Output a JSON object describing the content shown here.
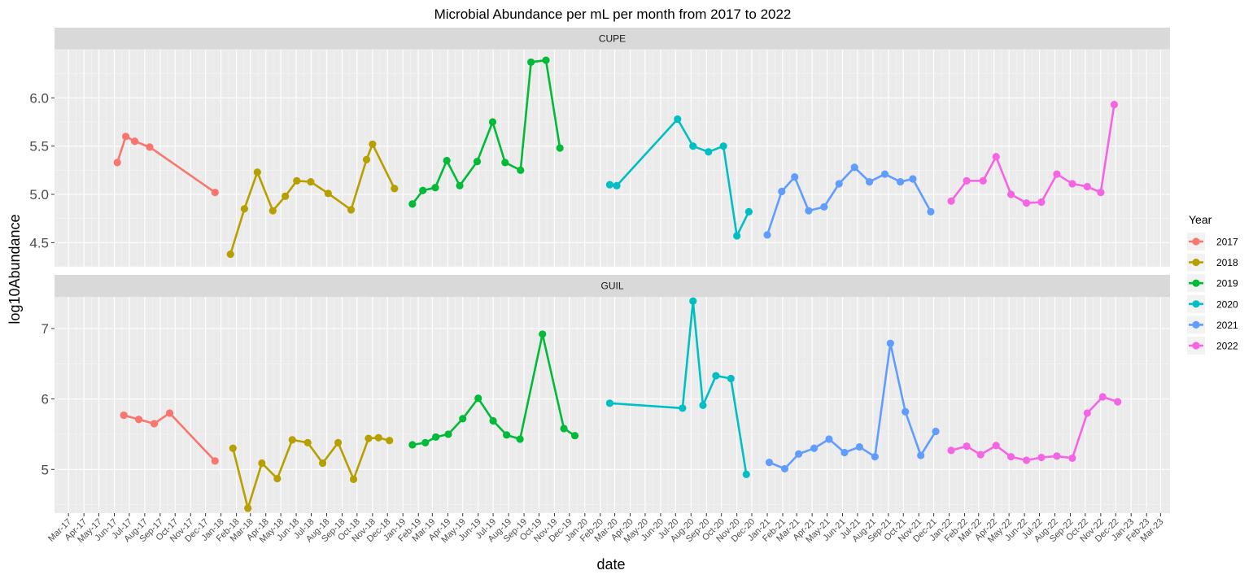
{
  "chart_data": {
    "type": "line",
    "title": "Microbial Abundance per mL per month from 2017 to 2022",
    "xlabel": "date",
    "ylabel": "log10Abundance",
    "x_tick_labels": [
      "Mar-17",
      "Apr-17",
      "May-17",
      "Jun-17",
      "Jul-17",
      "Aug-17",
      "Sep-17",
      "Oct-17",
      "Nov-17",
      "Dec-17",
      "Jan-18",
      "Feb-18",
      "Mar-18",
      "Apr-18",
      "May-18",
      "Jun-18",
      "Jul-18",
      "Aug-18",
      "Sep-18",
      "Oct-18",
      "Nov-18",
      "Dec-18",
      "Jan-19",
      "Feb-19",
      "Mar-19",
      "Apr-19",
      "May-19",
      "Jun-19",
      "Jul-19",
      "Aug-19",
      "Sep-19",
      "Oct-19",
      "Nov-19",
      "Dec-19",
      "Jan-20",
      "Feb-20",
      "Mar-20",
      "Apr-20",
      "May-20",
      "Jun-20",
      "Jul-20",
      "Aug-20",
      "Sep-20",
      "Oct-20",
      "Nov-20",
      "Dec-20",
      "Jan-21",
      "Feb-21",
      "Mar-21",
      "Apr-21",
      "May-21",
      "Jun-21",
      "Jul-21",
      "Aug-21",
      "Sep-21",
      "Oct-21",
      "Nov-21",
      "Dec-21",
      "Jan-22",
      "Feb-22",
      "Mar-22",
      "Apr-22",
      "May-22",
      "Jun-22",
      "Jul-22",
      "Aug-22",
      "Sep-22",
      "Oct-22",
      "Nov-22",
      "Dec-22",
      "Jan-23",
      "Feb-23",
      "Mar-23"
    ],
    "x_range": [
      "2017-02-01",
      "2023-03-20"
    ],
    "grid": true,
    "legend": {
      "title": "Year",
      "placement": "right",
      "entries": [
        {
          "label": "2017",
          "color": "#F8766D"
        },
        {
          "label": "2018",
          "color": "#B79F00"
        },
        {
          "label": "2019",
          "color": "#00BA38"
        },
        {
          "label": "2020",
          "color": "#00BFC4"
        },
        {
          "label": "2021",
          "color": "#619CFF"
        },
        {
          "label": "2022",
          "color": "#F564E3"
        }
      ]
    },
    "panels": [
      {
        "strip": "CUPE",
        "ylim": [
          4.25,
          6.5
        ],
        "y_ticks": [
          4.5,
          5.0,
          5.5,
          6.0
        ],
        "y_tick_labels": [
          "4.5",
          "5.0",
          "5.5",
          "6.0"
        ],
        "series": [
          {
            "name": "2017",
            "color": "#F8766D",
            "points": [
              [
                "2017-06-07",
                5.33
              ],
              [
                "2017-06-24",
                5.6
              ],
              [
                "2017-07-12",
                5.55
              ],
              [
                "2017-08-11",
                5.49
              ],
              [
                "2017-12-20",
                5.02
              ]
            ]
          },
          {
            "name": "2018",
            "color": "#B79F00",
            "points": [
              [
                "2018-01-20",
                4.38
              ],
              [
                "2018-02-17",
                4.85
              ],
              [
                "2018-03-15",
                5.23
              ],
              [
                "2018-04-15",
                4.83
              ],
              [
                "2018-05-10",
                4.98
              ],
              [
                "2018-06-02",
                5.14
              ],
              [
                "2018-06-30",
                5.13
              ],
              [
                "2018-08-04",
                5.01
              ],
              [
                "2018-09-19",
                4.84
              ],
              [
                "2018-10-20",
                5.36
              ],
              [
                "2018-11-01",
                5.52
              ],
              [
                "2018-12-15",
                5.06
              ]
            ]
          },
          {
            "name": "2019",
            "color": "#00BA38",
            "points": [
              [
                "2019-01-20",
                4.9
              ],
              [
                "2019-02-10",
                5.04
              ],
              [
                "2019-03-07",
                5.07
              ],
              [
                "2019-03-30",
                5.35
              ],
              [
                "2019-04-25",
                5.09
              ],
              [
                "2019-05-30",
                5.34
              ],
              [
                "2019-06-30",
                5.75
              ],
              [
                "2019-07-25",
                5.33
              ],
              [
                "2019-08-25",
                5.25
              ],
              [
                "2019-09-15",
                6.37
              ],
              [
                "2019-10-15",
                6.39
              ],
              [
                "2019-11-12",
                5.48
              ]
            ]
          },
          {
            "name": "2020",
            "color": "#00BFC4",
            "points": [
              [
                "2020-02-20",
                5.1
              ],
              [
                "2020-03-05",
                5.09
              ],
              [
                "2020-07-05",
                5.78
              ],
              [
                "2020-08-05",
                5.5
              ],
              [
                "2020-09-05",
                5.44
              ],
              [
                "2020-10-05",
                5.5
              ],
              [
                "2020-11-01",
                4.57
              ],
              [
                "2020-11-25",
                4.82
              ]
            ]
          },
          {
            "name": "2021",
            "color": "#619CFF",
            "points": [
              [
                "2021-01-01",
                4.58
              ],
              [
                "2021-01-30",
                5.03
              ],
              [
                "2021-02-25",
                5.18
              ],
              [
                "2021-03-25",
                4.83
              ],
              [
                "2021-04-25",
                4.87
              ],
              [
                "2021-05-25",
                5.11
              ],
              [
                "2021-06-25",
                5.28
              ],
              [
                "2021-07-25",
                5.13
              ],
              [
                "2021-08-25",
                5.21
              ],
              [
                "2021-09-25",
                5.13
              ],
              [
                "2021-10-20",
                5.16
              ],
              [
                "2021-11-25",
                4.82
              ]
            ]
          },
          {
            "name": "2022",
            "color": "#F564E3",
            "points": [
              [
                "2022-01-05",
                4.93
              ],
              [
                "2022-02-05",
                5.14
              ],
              [
                "2022-03-10",
                5.14
              ],
              [
                "2022-04-05",
                5.39
              ],
              [
                "2022-05-05",
                5.0
              ],
              [
                "2022-06-05",
                4.91
              ],
              [
                "2022-07-05",
                4.92
              ],
              [
                "2022-08-05",
                5.21
              ],
              [
                "2022-09-05",
                5.11
              ],
              [
                "2022-10-05",
                5.08
              ],
              [
                "2022-11-01",
                5.02
              ],
              [
                "2022-11-28",
                5.93
              ]
            ]
          }
        ]
      },
      {
        "strip": "GUIL",
        "ylim": [
          4.38,
          7.45
        ],
        "y_ticks": [
          5,
          6,
          7
        ],
        "y_tick_labels": [
          "5",
          "6",
          "7"
        ],
        "series": [
          {
            "name": "2017",
            "color": "#F8766D",
            "points": [
              [
                "2017-06-20",
                5.77
              ],
              [
                "2017-07-20",
                5.71
              ],
              [
                "2017-08-20",
                5.65
              ],
              [
                "2017-09-20",
                5.8
              ],
              [
                "2017-12-20",
                5.12
              ]
            ]
          },
          {
            "name": "2018",
            "color": "#B79F00",
            "points": [
              [
                "2018-01-25",
                5.3
              ],
              [
                "2018-02-24",
                4.45
              ],
              [
                "2018-03-24",
                5.09
              ],
              [
                "2018-04-24",
                4.87
              ],
              [
                "2018-05-24",
                5.42
              ],
              [
                "2018-06-24",
                5.38
              ],
              [
                "2018-07-24",
                5.09
              ],
              [
                "2018-08-24",
                5.38
              ],
              [
                "2018-09-24",
                4.86
              ],
              [
                "2018-10-24",
                5.44
              ],
              [
                "2018-11-13",
                5.45
              ],
              [
                "2018-12-05",
                5.41
              ]
            ]
          },
          {
            "name": "2019",
            "color": "#00BA38",
            "points": [
              [
                "2019-01-20",
                5.35
              ],
              [
                "2019-02-15",
                5.38
              ],
              [
                "2019-03-08",
                5.46
              ],
              [
                "2019-04-02",
                5.5
              ],
              [
                "2019-05-01",
                5.72
              ],
              [
                "2019-06-01",
                6.01
              ],
              [
                "2019-07-01",
                5.69
              ],
              [
                "2019-07-28",
                5.49
              ],
              [
                "2019-08-24",
                5.43
              ],
              [
                "2019-10-08",
                6.92
              ],
              [
                "2019-11-20",
                5.58
              ],
              [
                "2019-12-12",
                5.48
              ]
            ]
          },
          {
            "name": "2020",
            "color": "#00BFC4",
            "points": [
              [
                "2020-02-20",
                5.94
              ],
              [
                "2020-07-15",
                5.87
              ],
              [
                "2020-08-05",
                7.39
              ],
              [
                "2020-08-25",
                5.91
              ],
              [
                "2020-09-20",
                6.33
              ],
              [
                "2020-10-20",
                6.29
              ],
              [
                "2020-11-20",
                4.93
              ]
            ]
          },
          {
            "name": "2021",
            "color": "#619CFF",
            "points": [
              [
                "2021-01-05",
                5.1
              ],
              [
                "2021-02-05",
                5.01
              ],
              [
                "2021-03-05",
                5.22
              ],
              [
                "2021-04-05",
                5.3
              ],
              [
                "2021-05-05",
                5.43
              ],
              [
                "2021-06-05",
                5.24
              ],
              [
                "2021-07-05",
                5.32
              ],
              [
                "2021-08-05",
                5.18
              ],
              [
                "2021-09-05",
                6.79
              ],
              [
                "2021-10-05",
                5.82
              ],
              [
                "2021-11-05",
                5.2
              ],
              [
                "2021-12-05",
                5.54
              ]
            ]
          },
          {
            "name": "2022",
            "color": "#F564E3",
            "points": [
              [
                "2022-01-05",
                5.27
              ],
              [
                "2022-02-05",
                5.33
              ],
              [
                "2022-03-05",
                5.21
              ],
              [
                "2022-04-05",
                5.34
              ],
              [
                "2022-05-05",
                5.18
              ],
              [
                "2022-06-05",
                5.13
              ],
              [
                "2022-07-05",
                5.17
              ],
              [
                "2022-08-05",
                5.19
              ],
              [
                "2022-09-05",
                5.16
              ],
              [
                "2022-10-05",
                5.8
              ],
              [
                "2022-11-05",
                6.03
              ],
              [
                "2022-12-05",
                5.96
              ]
            ]
          }
        ]
      }
    ]
  }
}
